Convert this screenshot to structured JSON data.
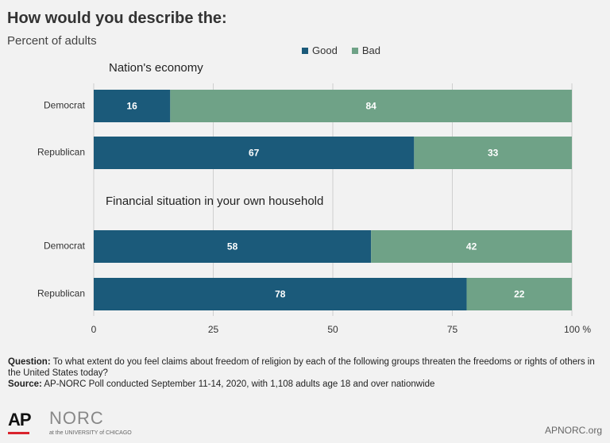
{
  "title": "How would you describe the:",
  "subtitle": "Percent of adults",
  "legend": [
    {
      "label": "Good",
      "color": "#1b5a7a"
    },
    {
      "label": "Bad",
      "color": "#6fa287"
    }
  ],
  "chart_data": {
    "type": "bar",
    "orientation": "horizontal",
    "stacked": true,
    "groups": [
      {
        "title": "Nation's economy",
        "categories": [
          "Democrat",
          "Republican"
        ],
        "series": [
          {
            "name": "Good",
            "values": [
              16,
              67
            ]
          },
          {
            "name": "Bad",
            "values": [
              84,
              33
            ]
          }
        ]
      },
      {
        "title": "Financial situation in your own household",
        "categories": [
          "Democrat",
          "Republican"
        ],
        "series": [
          {
            "name": "Good",
            "values": [
              58,
              78
            ]
          },
          {
            "name": "Bad",
            "values": [
              42,
              22
            ]
          }
        ]
      }
    ],
    "xlim": [
      0,
      100
    ],
    "xticks": [
      "0",
      "25",
      "50",
      "75",
      "100 %"
    ],
    "grid": true,
    "legend_position": "top-center"
  },
  "footer": {
    "question_label": "Question:",
    "question_text": "To what extent do you feel claims about freedom of religion by each of the following groups threaten the freedoms or rights of others in the United States today?",
    "source_label": "Source:",
    "source_text": "AP-NORC Poll conducted September 11-14, 2020, with 1,108 adults age 18 and over nationwide"
  },
  "logos": {
    "ap": "AP",
    "norc": "NORC",
    "norc_sub": "at the UNIVERSITY of CHICAGO",
    "site": "APNORC.org"
  }
}
